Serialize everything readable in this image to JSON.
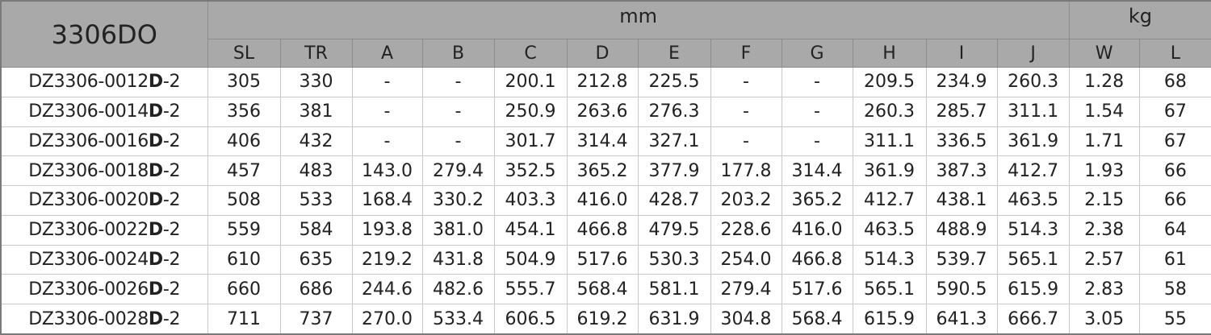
{
  "table": {
    "title": "3306DO",
    "groups": [
      {
        "label": "mm",
        "span": 12
      },
      {
        "label": "kg",
        "span": 2
      }
    ],
    "columns": [
      "SL",
      "TR",
      "A",
      "B",
      "C",
      "D",
      "E",
      "F",
      "G",
      "H",
      "I",
      "J",
      "W",
      "L"
    ],
    "rows": [
      {
        "part": [
          "DZ3306-0012",
          "D",
          "-2"
        ],
        "values": [
          "305",
          "330",
          "-",
          "-",
          "200.1",
          "212.8",
          "225.5",
          "-",
          "-",
          "209.5",
          "234.9",
          "260.3",
          "1.28",
          "68"
        ]
      },
      {
        "part": [
          "DZ3306-0014",
          "D",
          "-2"
        ],
        "values": [
          "356",
          "381",
          "-",
          "-",
          "250.9",
          "263.6",
          "276.3",
          "-",
          "-",
          "260.3",
          "285.7",
          "311.1",
          "1.54",
          "67"
        ]
      },
      {
        "part": [
          "DZ3306-0016",
          "D",
          "-2"
        ],
        "values": [
          "406",
          "432",
          "-",
          "-",
          "301.7",
          "314.4",
          "327.1",
          "-",
          "-",
          "311.1",
          "336.5",
          "361.9",
          "1.71",
          "67"
        ]
      },
      {
        "part": [
          "DZ3306-0018",
          "D",
          "-2"
        ],
        "values": [
          "457",
          "483",
          "143.0",
          "279.4",
          "352.5",
          "365.2",
          "377.9",
          "177.8",
          "314.4",
          "361.9",
          "387.3",
          "412.7",
          "1.93",
          "66"
        ]
      },
      {
        "part": [
          "DZ3306-0020",
          "D",
          "-2"
        ],
        "values": [
          "508",
          "533",
          "168.4",
          "330.2",
          "403.3",
          "416.0",
          "428.7",
          "203.2",
          "365.2",
          "412.7",
          "438.1",
          "463.5",
          "2.15",
          "66"
        ]
      },
      {
        "part": [
          "DZ3306-0022",
          "D",
          "-2"
        ],
        "values": [
          "559",
          "584",
          "193.8",
          "381.0",
          "454.1",
          "466.8",
          "479.5",
          "228.6",
          "416.0",
          "463.5",
          "488.9",
          "514.3",
          "2.38",
          "64"
        ]
      },
      {
        "part": [
          "DZ3306-0024",
          "D",
          "-2"
        ],
        "values": [
          "610",
          "635",
          "219.2",
          "431.8",
          "504.9",
          "517.6",
          "530.3",
          "254.0",
          "466.8",
          "514.3",
          "539.7",
          "565.1",
          "2.57",
          "61"
        ]
      },
      {
        "part": [
          "DZ3306-0026",
          "D",
          "-2"
        ],
        "values": [
          "660",
          "686",
          "244.6",
          "482.6",
          "555.7",
          "568.4",
          "581.1",
          "279.4",
          "517.6",
          "565.1",
          "590.5",
          "615.9",
          "2.83",
          "58"
        ]
      },
      {
        "part": [
          "DZ3306-0028",
          "D",
          "-2"
        ],
        "values": [
          "711",
          "737",
          "270.0",
          "533.4",
          "606.5",
          "619.2",
          "631.9",
          "304.8",
          "568.4",
          "615.9",
          "641.3",
          "666.7",
          "3.05",
          "55"
        ]
      }
    ]
  }
}
